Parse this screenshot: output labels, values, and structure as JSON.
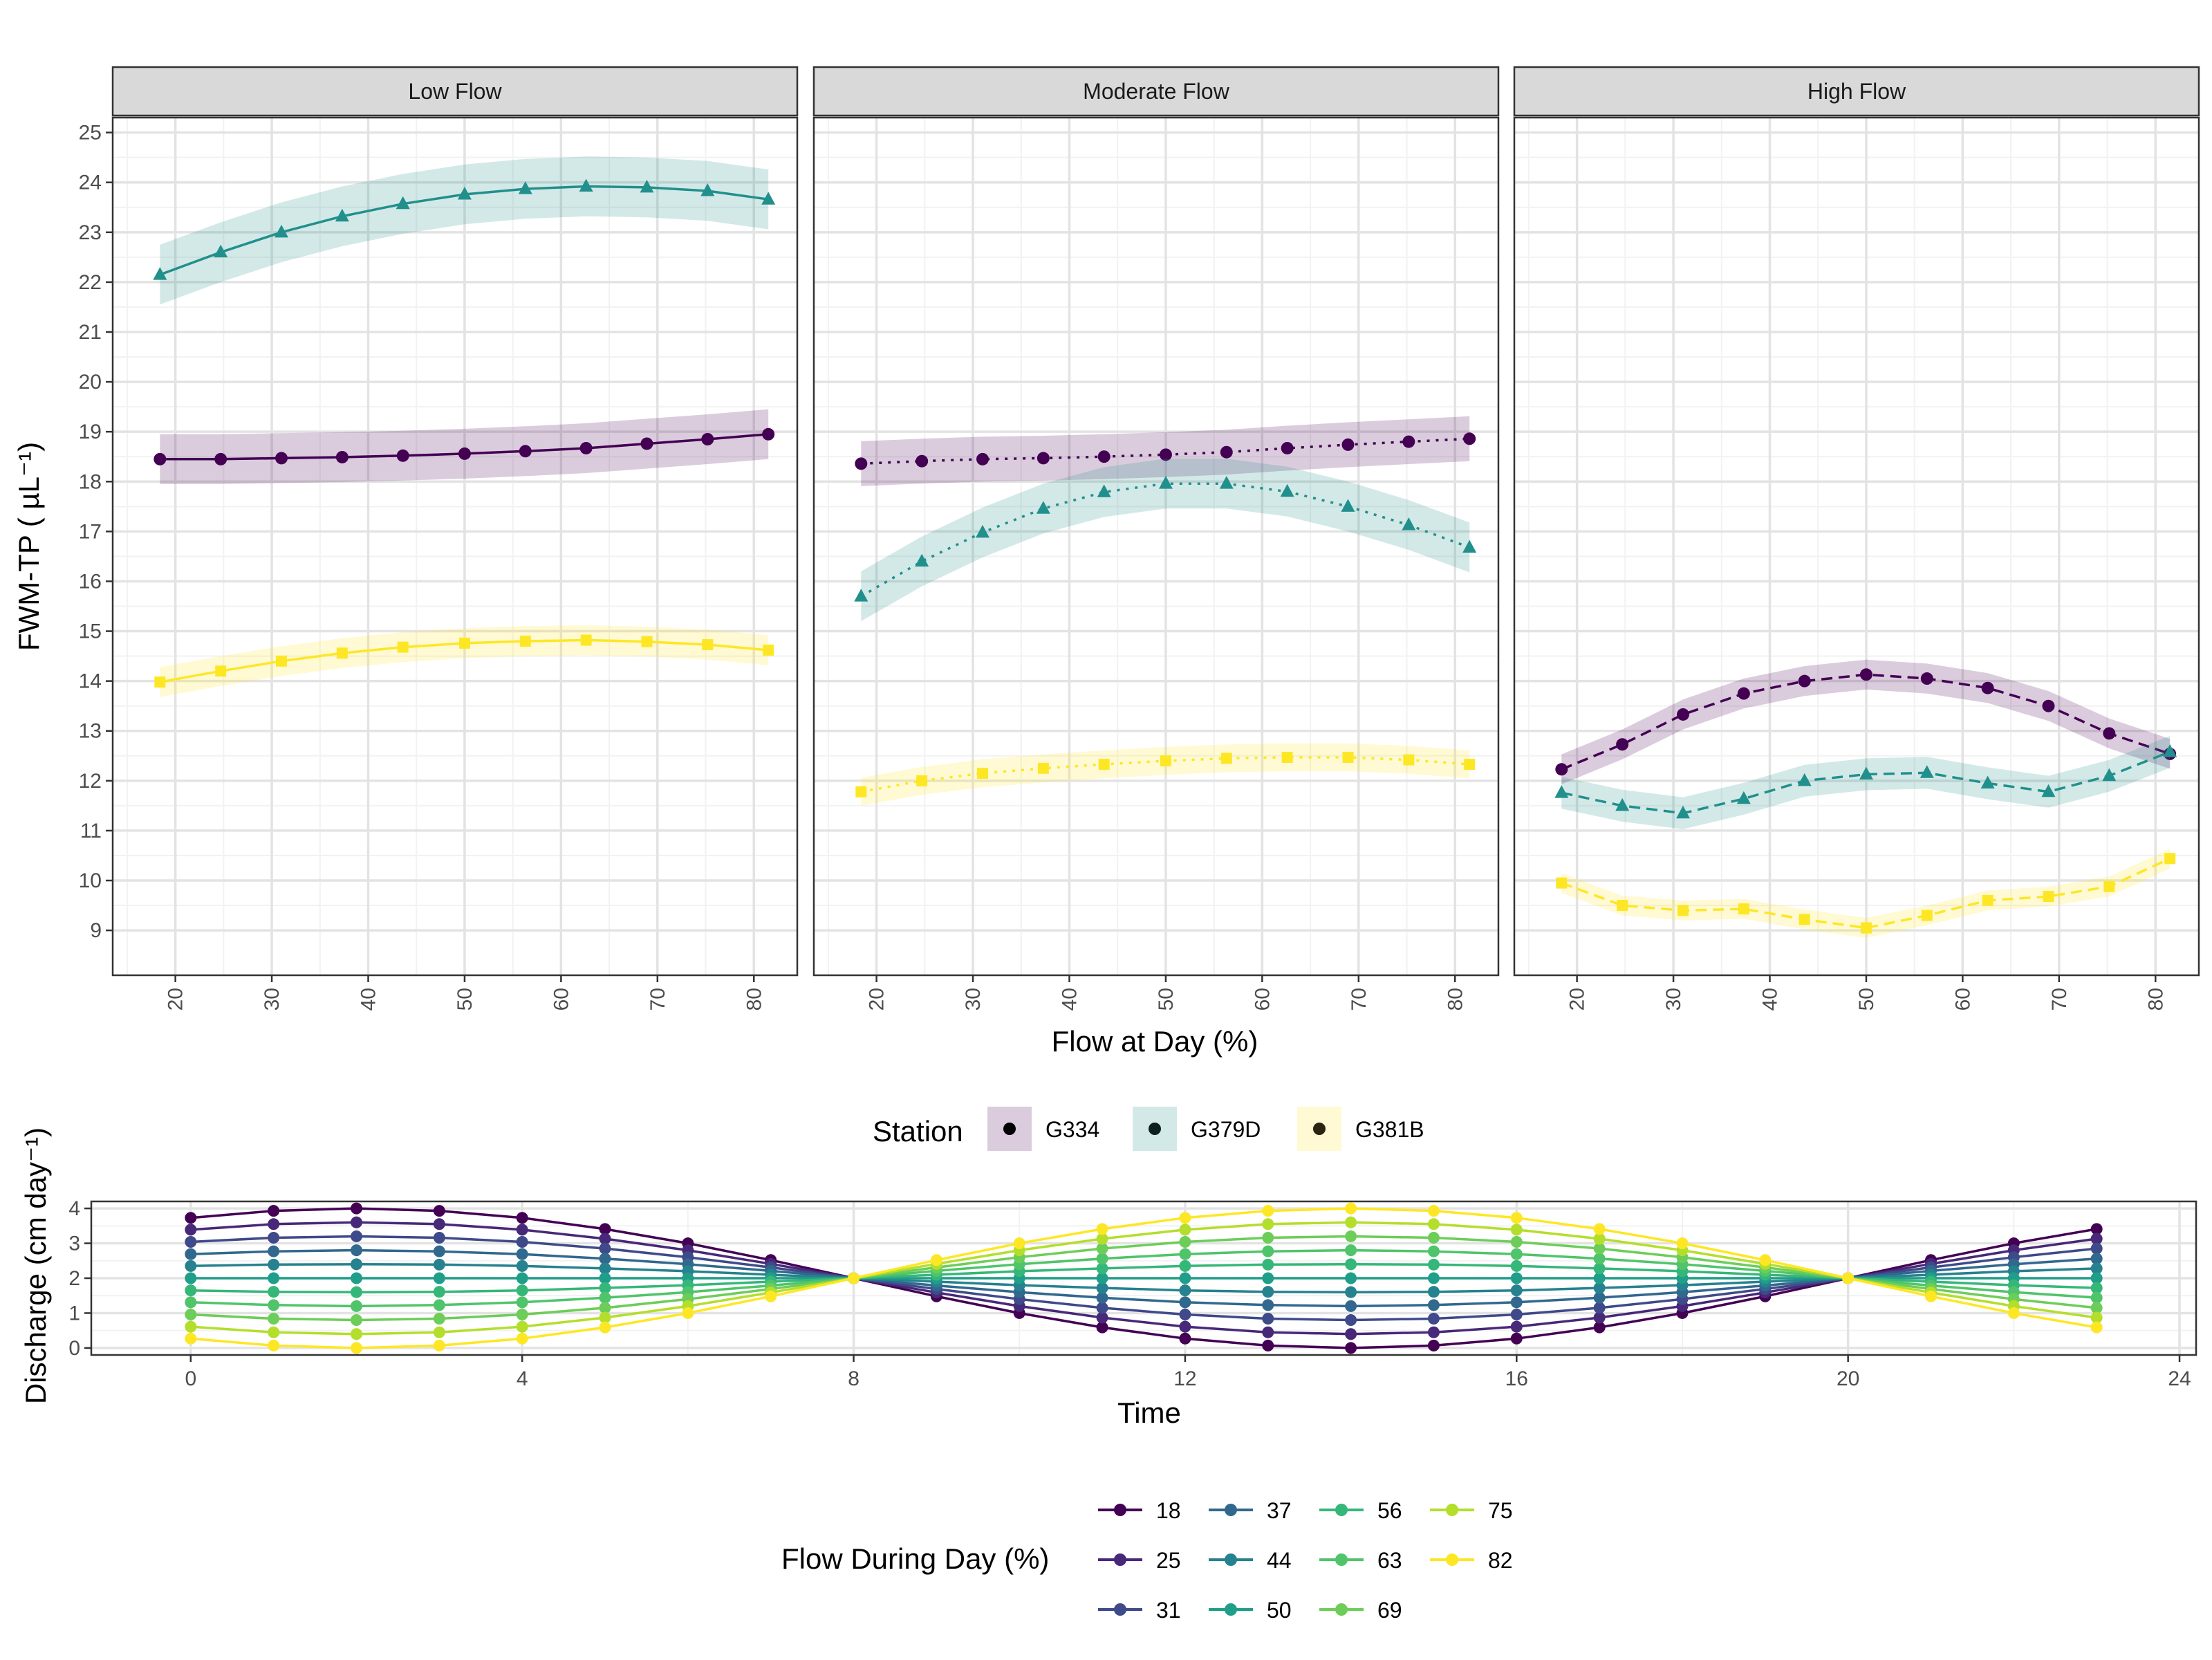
{
  "top_plot": {
    "ylabel": "FWM-TP ( µL⁻¹)",
    "xlabel": "Flow at Day (%)",
    "x_ticks": [
      20,
      30,
      40,
      50,
      60,
      70,
      80
    ],
    "y_ticks": [
      9,
      10,
      11,
      12,
      13,
      14,
      15,
      16,
      17,
      18,
      19,
      20,
      21,
      22,
      23,
      24,
      25
    ]
  },
  "station_legend": {
    "title": "Station",
    "items": [
      {
        "label": "G334",
        "fill": "#440154",
        "dot": "#000000"
      },
      {
        "label": "G379D",
        "fill": "#21908C",
        "dot": "#0d1f1f"
      },
      {
        "label": "G381B",
        "fill": "#FDE725",
        "dot": "#2a2410"
      }
    ]
  },
  "bottom_plot": {
    "ylabel": "Discharge (cm day⁻¹)",
    "xlabel": "Time",
    "x_ticks": [
      0,
      4,
      8,
      12,
      16,
      20,
      24
    ],
    "y_ticks": [
      0,
      1,
      2,
      3,
      4
    ]
  },
  "flow_legend": {
    "title": "Flow During Day (%)",
    "items": [
      {
        "label": "18",
        "color": "#440154"
      },
      {
        "label": "25",
        "color": "#482878"
      },
      {
        "label": "31",
        "color": "#3E4A89"
      },
      {
        "label": "37",
        "color": "#31688E"
      },
      {
        "label": "44",
        "color": "#26828E"
      },
      {
        "label": "50",
        "color": "#1F9E89"
      },
      {
        "label": "56",
        "color": "#35B779"
      },
      {
        "label": "63",
        "color": "#50C46A"
      },
      {
        "label": "69",
        "color": "#6DCD59"
      },
      {
        "label": "75",
        "color": "#B4DE2C"
      },
      {
        "label": "82",
        "color": "#FDE725"
      }
    ]
  },
  "chart_data": [
    {
      "type": "line",
      "xlabel": "Flow at Day (%)",
      "ylabel": "FWM-TP ( µL⁻¹)",
      "xlim": [
        13.5,
        84.5
      ],
      "ylim": [
        8.1,
        25.3
      ],
      "grid": true,
      "x": [
        18.4,
        24.7,
        31.0,
        37.3,
        43.6,
        50.0,
        56.3,
        62.6,
        68.9,
        75.2,
        81.5
      ],
      "facets": [
        {
          "label": "Low Flow",
          "series": [
            {
              "name": "G334",
              "color": "#440154",
              "marker": "circle",
              "dash": "solid",
              "values": [
                18.45,
                18.45,
                18.47,
                18.49,
                18.52,
                18.56,
                18.61,
                18.67,
                18.76,
                18.85,
                18.95
              ],
              "band": 0.5
            },
            {
              "name": "G379D",
              "color": "#21908C",
              "marker": "triangle",
              "dash": "solid",
              "values": [
                22.15,
                22.6,
                23.0,
                23.32,
                23.57,
                23.76,
                23.87,
                23.92,
                23.9,
                23.83,
                23.66
              ],
              "band": 0.6
            },
            {
              "name": "G381B",
              "color": "#FDE725",
              "marker": "square",
              "dash": "solid",
              "values": [
                13.98,
                14.2,
                14.4,
                14.56,
                14.68,
                14.76,
                14.8,
                14.82,
                14.79,
                14.73,
                14.62
              ],
              "band": 0.3
            }
          ]
        },
        {
          "label": "Moderate Flow",
          "series": [
            {
              "name": "G334",
              "color": "#440154",
              "marker": "circle",
              "dash": "dotted",
              "values": [
                18.36,
                18.41,
                18.45,
                18.47,
                18.5,
                18.54,
                18.59,
                18.67,
                18.74,
                18.8,
                18.86
              ],
              "band": 0.45
            },
            {
              "name": "G379D",
              "color": "#21908C",
              "marker": "triangle",
              "dash": "dotted",
              "values": [
                15.7,
                16.4,
                16.98,
                17.46,
                17.79,
                17.96,
                17.96,
                17.8,
                17.5,
                17.13,
                16.68
              ],
              "band": 0.5
            },
            {
              "name": "G381B",
              "color": "#FDE725",
              "marker": "square",
              "dash": "dotted",
              "values": [
                11.78,
                12.0,
                12.15,
                12.25,
                12.33,
                12.4,
                12.45,
                12.47,
                12.47,
                12.42,
                12.33
              ],
              "band": 0.28
            }
          ]
        },
        {
          "label": "High Flow",
          "series": [
            {
              "name": "G334",
              "color": "#440154",
              "marker": "circle",
              "dash": "dashed",
              "values": [
                12.23,
                12.73,
                13.33,
                13.75,
                14.0,
                14.13,
                14.05,
                13.86,
                13.5,
                12.95,
                12.54
              ],
              "band": 0.3
            },
            {
              "name": "G379D",
              "color": "#21908C",
              "marker": "triangle",
              "dash": "dashed",
              "values": [
                11.76,
                11.5,
                11.35,
                11.64,
                12.0,
                12.13,
                12.16,
                11.95,
                11.78,
                12.1,
                12.58
              ],
              "band": 0.32
            },
            {
              "name": "G381B",
              "color": "#FDE725",
              "marker": "square",
              "dash": "dashed",
              "values": [
                9.95,
                9.5,
                9.4,
                9.43,
                9.22,
                9.05,
                9.3,
                9.6,
                9.68,
                9.88,
                10.44
              ],
              "band": 0.2
            }
          ]
        }
      ]
    },
    {
      "type": "line",
      "xlabel": "Time",
      "ylabel": "Discharge (cm day⁻¹)",
      "xlim": [
        -1.2,
        24.2
      ],
      "ylim": [
        -0.2,
        4.2
      ],
      "grid": true,
      "x": [
        0,
        1,
        2,
        3,
        4,
        5,
        6,
        7,
        8,
        9,
        10,
        11,
        12,
        13,
        14,
        15,
        16,
        17,
        18,
        19,
        20,
        21,
        22,
        23
      ],
      "series": [
        {
          "name": "18",
          "color": "#440154",
          "values": [
            3.73,
            3.93,
            4.0,
            3.93,
            3.73,
            3.41,
            3.0,
            2.52,
            2.0,
            1.48,
            1.0,
            0.59,
            0.27,
            0.07,
            0.0,
            0.07,
            0.27,
            0.59,
            1.0,
            1.48,
            2.0,
            2.52,
            3.0,
            3.41
          ]
        },
        {
          "name": "25",
          "color": "#482878",
          "values": [
            3.39,
            3.55,
            3.6,
            3.55,
            3.39,
            3.13,
            2.8,
            2.41,
            2.0,
            1.59,
            1.2,
            0.87,
            0.61,
            0.45,
            0.4,
            0.45,
            0.61,
            0.87,
            1.2,
            1.59,
            2.0,
            2.41,
            2.8,
            3.13
          ]
        },
        {
          "name": "31",
          "color": "#3E4A89",
          "values": [
            3.04,
            3.16,
            3.2,
            3.16,
            3.04,
            2.85,
            2.6,
            2.31,
            2.0,
            1.69,
            1.4,
            1.15,
            0.96,
            0.84,
            0.8,
            0.84,
            0.96,
            1.15,
            1.4,
            1.69,
            2.0,
            2.31,
            2.6,
            2.85
          ]
        },
        {
          "name": "37",
          "color": "#31688E",
          "values": [
            2.69,
            2.77,
            2.8,
            2.77,
            2.69,
            2.56,
            2.4,
            2.21,
            2.0,
            1.79,
            1.6,
            1.44,
            1.31,
            1.23,
            1.2,
            1.23,
            1.31,
            1.44,
            1.6,
            1.79,
            2.0,
            2.21,
            2.4,
            2.56
          ]
        },
        {
          "name": "44",
          "color": "#26828E",
          "values": [
            2.35,
            2.39,
            2.4,
            2.39,
            2.35,
            2.28,
            2.2,
            2.1,
            2.0,
            1.9,
            1.8,
            1.72,
            1.65,
            1.61,
            1.6,
            1.61,
            1.65,
            1.72,
            1.8,
            1.9,
            2.0,
            2.1,
            2.2,
            2.28
          ]
        },
        {
          "name": "50",
          "color": "#1F9E89",
          "values": [
            2.0,
            2.0,
            2.0,
            2.0,
            2.0,
            2.0,
            2.0,
            2.0,
            2.0,
            2.0,
            2.0,
            2.0,
            2.0,
            2.0,
            2.0,
            2.0,
            2.0,
            2.0,
            2.0,
            2.0,
            2.0,
            2.0,
            2.0,
            2.0
          ]
        },
        {
          "name": "56",
          "color": "#35B779",
          "values": [
            1.65,
            1.61,
            1.6,
            1.61,
            1.65,
            1.72,
            1.8,
            1.9,
            2.0,
            2.1,
            2.2,
            2.28,
            2.35,
            2.39,
            2.4,
            2.39,
            2.35,
            2.28,
            2.2,
            2.1,
            2.0,
            1.9,
            1.8,
            1.72
          ]
        },
        {
          "name": "63",
          "color": "#50C46A",
          "values": [
            1.31,
            1.23,
            1.2,
            1.23,
            1.31,
            1.44,
            1.6,
            1.79,
            2.0,
            2.21,
            2.4,
            2.56,
            2.69,
            2.77,
            2.8,
            2.77,
            2.69,
            2.56,
            2.4,
            2.21,
            2.0,
            1.79,
            1.6,
            1.44
          ]
        },
        {
          "name": "69",
          "color": "#6DCD59",
          "values": [
            0.96,
            0.84,
            0.8,
            0.84,
            0.96,
            1.15,
            1.4,
            1.69,
            2.0,
            2.31,
            2.6,
            2.85,
            3.04,
            3.16,
            3.2,
            3.16,
            3.04,
            2.85,
            2.6,
            2.31,
            2.0,
            1.69,
            1.4,
            1.15
          ]
        },
        {
          "name": "75",
          "color": "#B4DE2C",
          "values": [
            0.61,
            0.45,
            0.4,
            0.45,
            0.61,
            0.87,
            1.2,
            1.59,
            2.0,
            2.41,
            2.8,
            3.13,
            3.39,
            3.55,
            3.6,
            3.55,
            3.39,
            3.13,
            2.8,
            2.41,
            2.0,
            1.59,
            1.2,
            0.87
          ]
        },
        {
          "name": "82",
          "color": "#FDE725",
          "values": [
            0.27,
            0.07,
            0.0,
            0.07,
            0.27,
            0.59,
            1.0,
            1.48,
            2.0,
            2.52,
            3.0,
            3.41,
            3.73,
            3.93,
            4.0,
            3.93,
            3.73,
            3.41,
            3.0,
            2.52,
            2.0,
            1.48,
            1.0,
            0.59
          ]
        }
      ]
    }
  ]
}
